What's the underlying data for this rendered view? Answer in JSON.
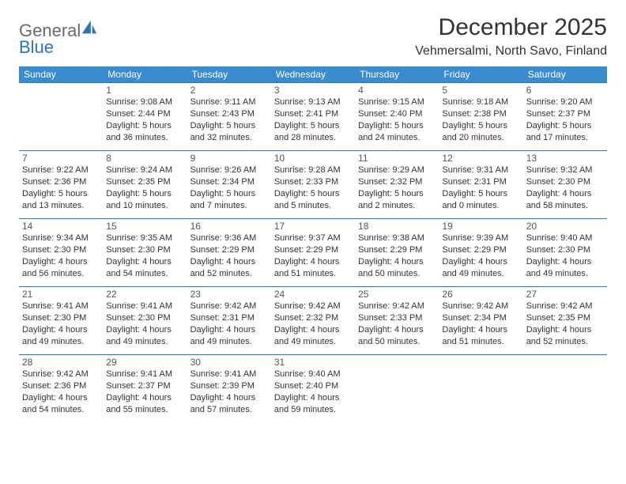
{
  "logo": {
    "word1": "General",
    "word2": "Blue"
  },
  "title": "December 2025",
  "location": "Vehmersalmi, North Savo, Finland",
  "colors": {
    "header_bg": "#3a8bd0",
    "header_text": "#ffffff",
    "border": "#2e73b8",
    "logo_gray": "#6a6a6a",
    "logo_blue": "#2e73b8"
  },
  "weekdays": [
    "Sunday",
    "Monday",
    "Tuesday",
    "Wednesday",
    "Thursday",
    "Friday",
    "Saturday"
  ],
  "weeks": [
    [
      null,
      {
        "d": "1",
        "sr": "9:08 AM",
        "ss": "2:44 PM",
        "dl": "5 hours and 36 minutes."
      },
      {
        "d": "2",
        "sr": "9:11 AM",
        "ss": "2:43 PM",
        "dl": "5 hours and 32 minutes."
      },
      {
        "d": "3",
        "sr": "9:13 AM",
        "ss": "2:41 PM",
        "dl": "5 hours and 28 minutes."
      },
      {
        "d": "4",
        "sr": "9:15 AM",
        "ss": "2:40 PM",
        "dl": "5 hours and 24 minutes."
      },
      {
        "d": "5",
        "sr": "9:18 AM",
        "ss": "2:38 PM",
        "dl": "5 hours and 20 minutes."
      },
      {
        "d": "6",
        "sr": "9:20 AM",
        "ss": "2:37 PM",
        "dl": "5 hours and 17 minutes."
      }
    ],
    [
      {
        "d": "7",
        "sr": "9:22 AM",
        "ss": "2:36 PM",
        "dl": "5 hours and 13 minutes."
      },
      {
        "d": "8",
        "sr": "9:24 AM",
        "ss": "2:35 PM",
        "dl": "5 hours and 10 minutes."
      },
      {
        "d": "9",
        "sr": "9:26 AM",
        "ss": "2:34 PM",
        "dl": "5 hours and 7 minutes."
      },
      {
        "d": "10",
        "sr": "9:28 AM",
        "ss": "2:33 PM",
        "dl": "5 hours and 5 minutes."
      },
      {
        "d": "11",
        "sr": "9:29 AM",
        "ss": "2:32 PM",
        "dl": "5 hours and 2 minutes."
      },
      {
        "d": "12",
        "sr": "9:31 AM",
        "ss": "2:31 PM",
        "dl": "5 hours and 0 minutes."
      },
      {
        "d": "13",
        "sr": "9:32 AM",
        "ss": "2:30 PM",
        "dl": "4 hours and 58 minutes."
      }
    ],
    [
      {
        "d": "14",
        "sr": "9:34 AM",
        "ss": "2:30 PM",
        "dl": "4 hours and 56 minutes."
      },
      {
        "d": "15",
        "sr": "9:35 AM",
        "ss": "2:30 PM",
        "dl": "4 hours and 54 minutes."
      },
      {
        "d": "16",
        "sr": "9:36 AM",
        "ss": "2:29 PM",
        "dl": "4 hours and 52 minutes."
      },
      {
        "d": "17",
        "sr": "9:37 AM",
        "ss": "2:29 PM",
        "dl": "4 hours and 51 minutes."
      },
      {
        "d": "18",
        "sr": "9:38 AM",
        "ss": "2:29 PM",
        "dl": "4 hours and 50 minutes."
      },
      {
        "d": "19",
        "sr": "9:39 AM",
        "ss": "2:29 PM",
        "dl": "4 hours and 49 minutes."
      },
      {
        "d": "20",
        "sr": "9:40 AM",
        "ss": "2:30 PM",
        "dl": "4 hours and 49 minutes."
      }
    ],
    [
      {
        "d": "21",
        "sr": "9:41 AM",
        "ss": "2:30 PM",
        "dl": "4 hours and 49 minutes."
      },
      {
        "d": "22",
        "sr": "9:41 AM",
        "ss": "2:30 PM",
        "dl": "4 hours and 49 minutes."
      },
      {
        "d": "23",
        "sr": "9:42 AM",
        "ss": "2:31 PM",
        "dl": "4 hours and 49 minutes."
      },
      {
        "d": "24",
        "sr": "9:42 AM",
        "ss": "2:32 PM",
        "dl": "4 hours and 49 minutes."
      },
      {
        "d": "25",
        "sr": "9:42 AM",
        "ss": "2:33 PM",
        "dl": "4 hours and 50 minutes."
      },
      {
        "d": "26",
        "sr": "9:42 AM",
        "ss": "2:34 PM",
        "dl": "4 hours and 51 minutes."
      },
      {
        "d": "27",
        "sr": "9:42 AM",
        "ss": "2:35 PM",
        "dl": "4 hours and 52 minutes."
      }
    ],
    [
      {
        "d": "28",
        "sr": "9:42 AM",
        "ss": "2:36 PM",
        "dl": "4 hours and 54 minutes."
      },
      {
        "d": "29",
        "sr": "9:41 AM",
        "ss": "2:37 PM",
        "dl": "4 hours and 55 minutes."
      },
      {
        "d": "30",
        "sr": "9:41 AM",
        "ss": "2:39 PM",
        "dl": "4 hours and 57 minutes."
      },
      {
        "d": "31",
        "sr": "9:40 AM",
        "ss": "2:40 PM",
        "dl": "4 hours and 59 minutes."
      },
      null,
      null,
      null
    ]
  ],
  "labels": {
    "sunrise": "Sunrise: ",
    "sunset": "Sunset: ",
    "daylight": "Daylight: "
  }
}
